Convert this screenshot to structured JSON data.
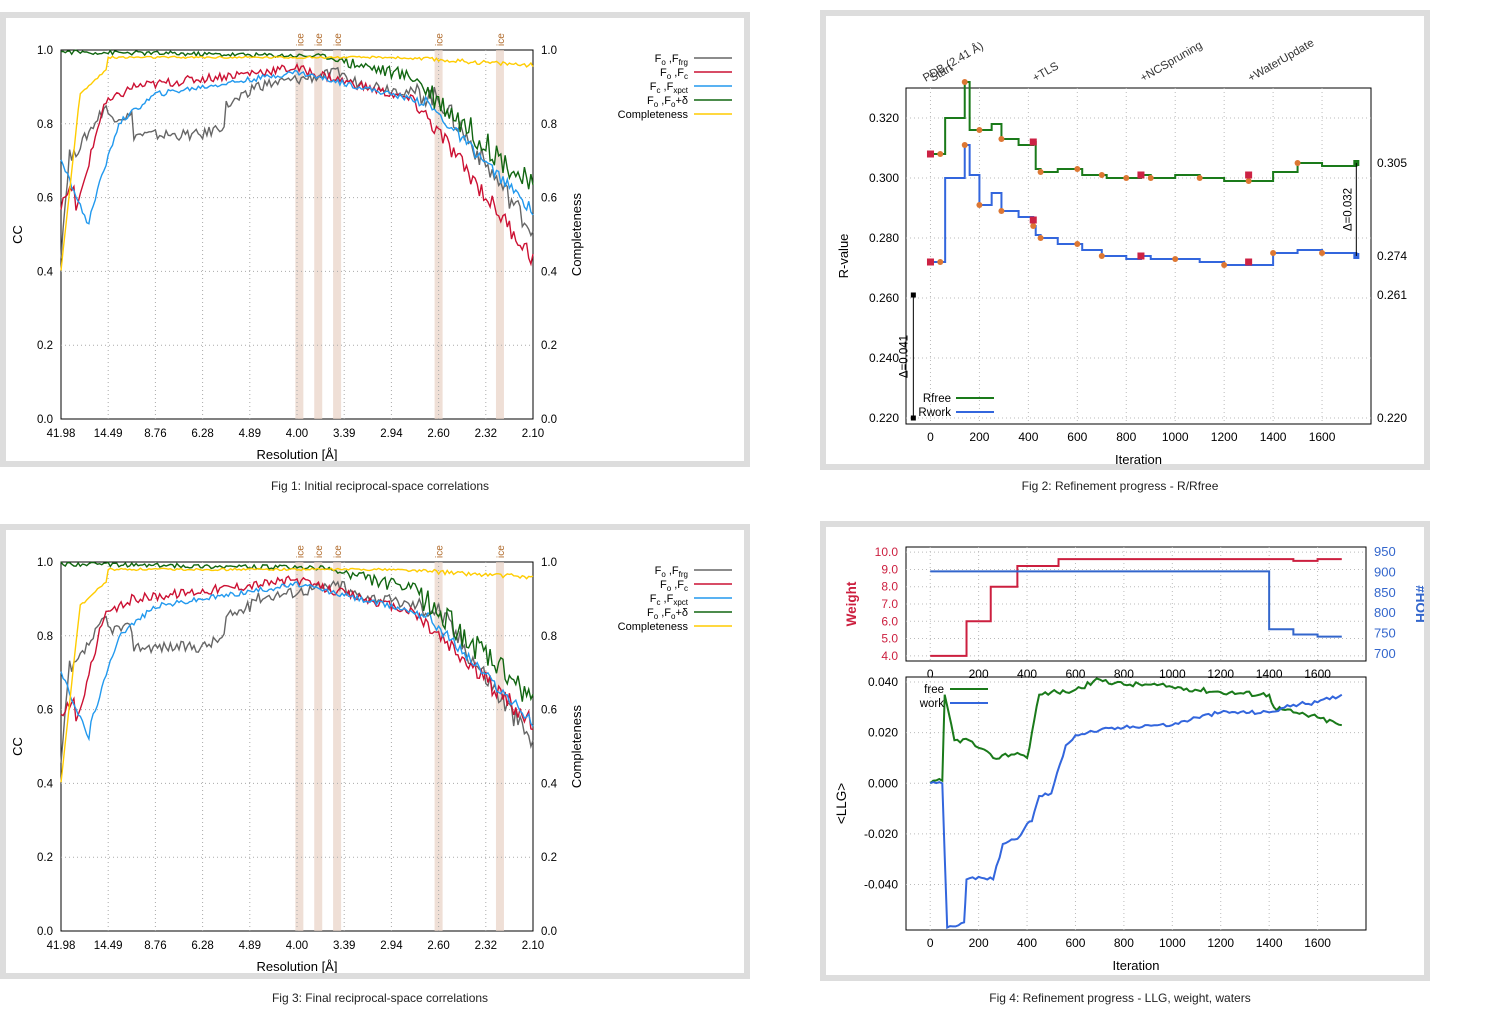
{
  "captions": {
    "fig1": "Fig 1:  Initial reciprocal-space correlations",
    "fig2": "Fig 2:  Refinement progress - R/Rfree",
    "fig3": "Fig 3:  Final reciprocal-space correlations",
    "fig4": "Fig 4:  Refinement progress - LLG, weight, waters"
  },
  "cc_common": {
    "ylabel": "CC",
    "y2label": "Completeness",
    "xlabel": "Resolution [Å]",
    "xticks": [
      "41.98",
      "14.49",
      "8.76",
      "6.28",
      "4.89",
      "4.00",
      "3.39",
      "2.94",
      "2.60",
      "2.32",
      "2.10"
    ],
    "yticks": [
      "0.0",
      "0.2",
      "0.4",
      "0.6",
      "0.8",
      "1.0"
    ],
    "ice_label": "ice",
    "ice_bands_x": [
      0.505,
      0.545,
      0.585,
      0.8,
      0.93
    ],
    "legend": [
      {
        "base": "F",
        "sub1": "o",
        "sep": " ,F",
        "sub2": "frg",
        "tail": "",
        "color": "#666666"
      },
      {
        "base": "F",
        "sub1": "o",
        "sep": " ,F",
        "sub2": "c",
        "tail": "",
        "color": "#cc1133"
      },
      {
        "base": "F",
        "sub1": "c",
        "sep": " ,F",
        "sub2": "xpct",
        "tail": "",
        "color": "#2299ee"
      },
      {
        "base": "F",
        "sub1": "o",
        "sep": " ,F",
        "sub2": "o",
        "tail": "+δ",
        "color": "#116611"
      },
      {
        "base": "Completeness",
        "sub1": "",
        "sep": "",
        "sub2": "",
        "tail": "",
        "color": "#ffcc00"
      }
    ]
  },
  "fig2": {
    "ylabel": "R-value",
    "xlabel": "Iteration",
    "yticks": [
      "0.220",
      "0.240",
      "0.260",
      "0.280",
      "0.300",
      "0.320"
    ],
    "xticks": [
      "0",
      "200",
      "400",
      "600",
      "800",
      "1000",
      "1200",
      "1400",
      "1600"
    ],
    "right_labels": [
      "0.305",
      "0.274",
      "0.261",
      "0.220"
    ],
    "delta_left": "Δ=0.041",
    "delta_right": "Δ=0.032",
    "stage_labels": [
      "PDB (2.41 Å)",
      "Start",
      "+TLS",
      "+NCSpruning",
      "+WaterUpdate"
    ],
    "legend": [
      "Rfree",
      "Rwork"
    ]
  },
  "fig4": {
    "top_ylabel": "Weight",
    "top_y2label": "#HOH",
    "top_yticks": [
      "4.0",
      "5.0",
      "6.0",
      "7.0",
      "8.0",
      "9.0",
      "10.0"
    ],
    "top_y2ticks": [
      "700",
      "750",
      "800",
      "850",
      "900",
      "950"
    ],
    "ylabel": "<LLG>",
    "xlabel": "Iteration",
    "yticks": [
      "-0.040",
      "-0.020",
      "0.000",
      "0.020",
      "0.040"
    ],
    "xticks": [
      "0",
      "200",
      "400",
      "600",
      "800",
      "1000",
      "1200",
      "1400",
      "1600"
    ],
    "legend": [
      "free",
      "work"
    ]
  },
  "chart_data": [
    {
      "type": "line",
      "title": "Fig 1:  Initial reciprocal-space correlations",
      "xlabel": "Resolution [Å]",
      "ylabel": "CC",
      "y2label": "Completeness",
      "xticks": [
        "41.98",
        "14.49",
        "8.76",
        "6.28",
        "4.89",
        "4.00",
        "3.39",
        "2.94",
        "2.60",
        "2.32",
        "2.10"
      ],
      "ylim": [
        0,
        1
      ],
      "series": [
        {
          "name": "Fo,Ffrg",
          "approx_range": [
            0.45,
            0.95
          ]
        },
        {
          "name": "Fo,Fc",
          "approx_range": [
            0.45,
            0.96
          ]
        },
        {
          "name": "Fc,Fxpct",
          "approx_range": [
            0.5,
            0.95
          ]
        },
        {
          "name": "Fo,Fo+δ",
          "approx_range": [
            0.64,
            1.0
          ]
        },
        {
          "name": "Completeness",
          "approx_range": [
            0.4,
            1.0
          ]
        }
      ]
    },
    {
      "type": "line",
      "title": "Fig 2:  Refinement progress - R/Rfree",
      "xlabel": "Iteration",
      "ylabel": "R-value",
      "ylim": [
        0.218,
        0.33
      ],
      "series": [
        {
          "name": "Rfree",
          "x": [
            0,
            40,
            60,
            140,
            160,
            200,
            250,
            290,
            360,
            420,
            430,
            450,
            520,
            600,
            620,
            700,
            720,
            800,
            860,
            900,
            1000,
            1100,
            1200,
            1300,
            1400,
            1500,
            1600,
            1740
          ],
          "y": [
            0.308,
            0.308,
            0.32,
            0.332,
            0.316,
            0.316,
            0.318,
            0.313,
            0.311,
            0.312,
            0.303,
            0.302,
            0.303,
            0.303,
            0.301,
            0.301,
            0.3,
            0.3,
            0.301,
            0.3,
            0.301,
            0.3,
            0.299,
            0.299,
            0.302,
            0.305,
            0.304,
            0.305
          ]
        },
        {
          "name": "Rwork",
          "x": [
            0,
            40,
            60,
            140,
            160,
            200,
            250,
            290,
            360,
            420,
            430,
            450,
            520,
            600,
            620,
            700,
            800,
            860,
            900,
            1000,
            1100,
            1200,
            1300,
            1400,
            1500,
            1600,
            1740
          ],
          "y": [
            0.272,
            0.272,
            0.3,
            0.311,
            0.301,
            0.291,
            0.295,
            0.289,
            0.287,
            0.284,
            0.281,
            0.28,
            0.278,
            0.278,
            0.276,
            0.274,
            0.273,
            0.274,
            0.273,
            0.273,
            0.272,
            0.271,
            0.271,
            0.275,
            0.276,
            0.275,
            0.274
          ]
        }
      ]
    },
    {
      "type": "line",
      "title": "Fig 3:  Final reciprocal-space correlations",
      "xlabel": "Resolution [Å]",
      "ylabel": "CC",
      "y2label": "Completeness",
      "ylim": [
        0,
        1
      ],
      "series": [
        {
          "name": "Fo,Ffrg",
          "approx_range": [
            0.45,
            0.95
          ]
        },
        {
          "name": "Fo,Fc",
          "approx_range": [
            0.5,
            0.96
          ]
        },
        {
          "name": "Fc,Fxpct",
          "approx_range": [
            0.5,
            0.95
          ]
        },
        {
          "name": "Fo,Fo+δ",
          "approx_range": [
            0.6,
            1.0
          ]
        },
        {
          "name": "Completeness",
          "approx_range": [
            0.4,
            1.0
          ]
        }
      ]
    },
    {
      "type": "line",
      "title": "Fig 4:  Refinement progress - LLG, weight, waters",
      "xlabel": "Iteration",
      "series": [
        {
          "name": "Weight",
          "x": [
            0,
            140,
            150,
            240,
            250,
            350,
            360,
            520,
            530,
            1400,
            1500,
            1600,
            1700
          ],
          "y": [
            4.0,
            4.0,
            6.0,
            6.0,
            8.0,
            8.0,
            9.2,
            9.2,
            9.6,
            9.6,
            9.5,
            9.6,
            9.6
          ]
        },
        {
          "name": "#HOH",
          "x": [
            0,
            1395,
            1400,
            1500,
            1600,
            1700
          ],
          "y": [
            900,
            900,
            758,
            745,
            740,
            740
          ]
        },
        {
          "name": "free",
          "x": [
            0,
            50,
            60,
            100,
            160,
            200,
            260,
            360,
            400,
            420,
            450,
            500,
            560,
            600,
            700,
            800,
            900,
            1000,
            1200,
            1400,
            1420,
            1500,
            1600,
            1700
          ],
          "y": [
            0.0,
            0.001,
            0.035,
            0.017,
            0.017,
            0.014,
            0.01,
            0.012,
            0.01,
            0.02,
            0.035,
            0.036,
            0.036,
            0.037,
            0.041,
            0.039,
            0.039,
            0.038,
            0.036,
            0.035,
            0.03,
            0.028,
            0.026,
            0.023
          ]
        },
        {
          "name": "work",
          "x": [
            0,
            50,
            70,
            140,
            150,
            200,
            260,
            300,
            360,
            400,
            420,
            450,
            500,
            560,
            600,
            700,
            800,
            900,
            1000,
            1100,
            1200,
            1400,
            1500,
            1600,
            1700
          ],
          "y": [
            0.0,
            0.0,
            -0.057,
            -0.055,
            -0.038,
            -0.037,
            -0.038,
            -0.024,
            -0.022,
            -0.016,
            -0.015,
            -0.005,
            -0.004,
            0.015,
            0.019,
            0.021,
            0.022,
            0.023,
            0.023,
            0.026,
            0.028,
            0.028,
            0.031,
            0.032,
            0.035
          ]
        }
      ]
    }
  ]
}
